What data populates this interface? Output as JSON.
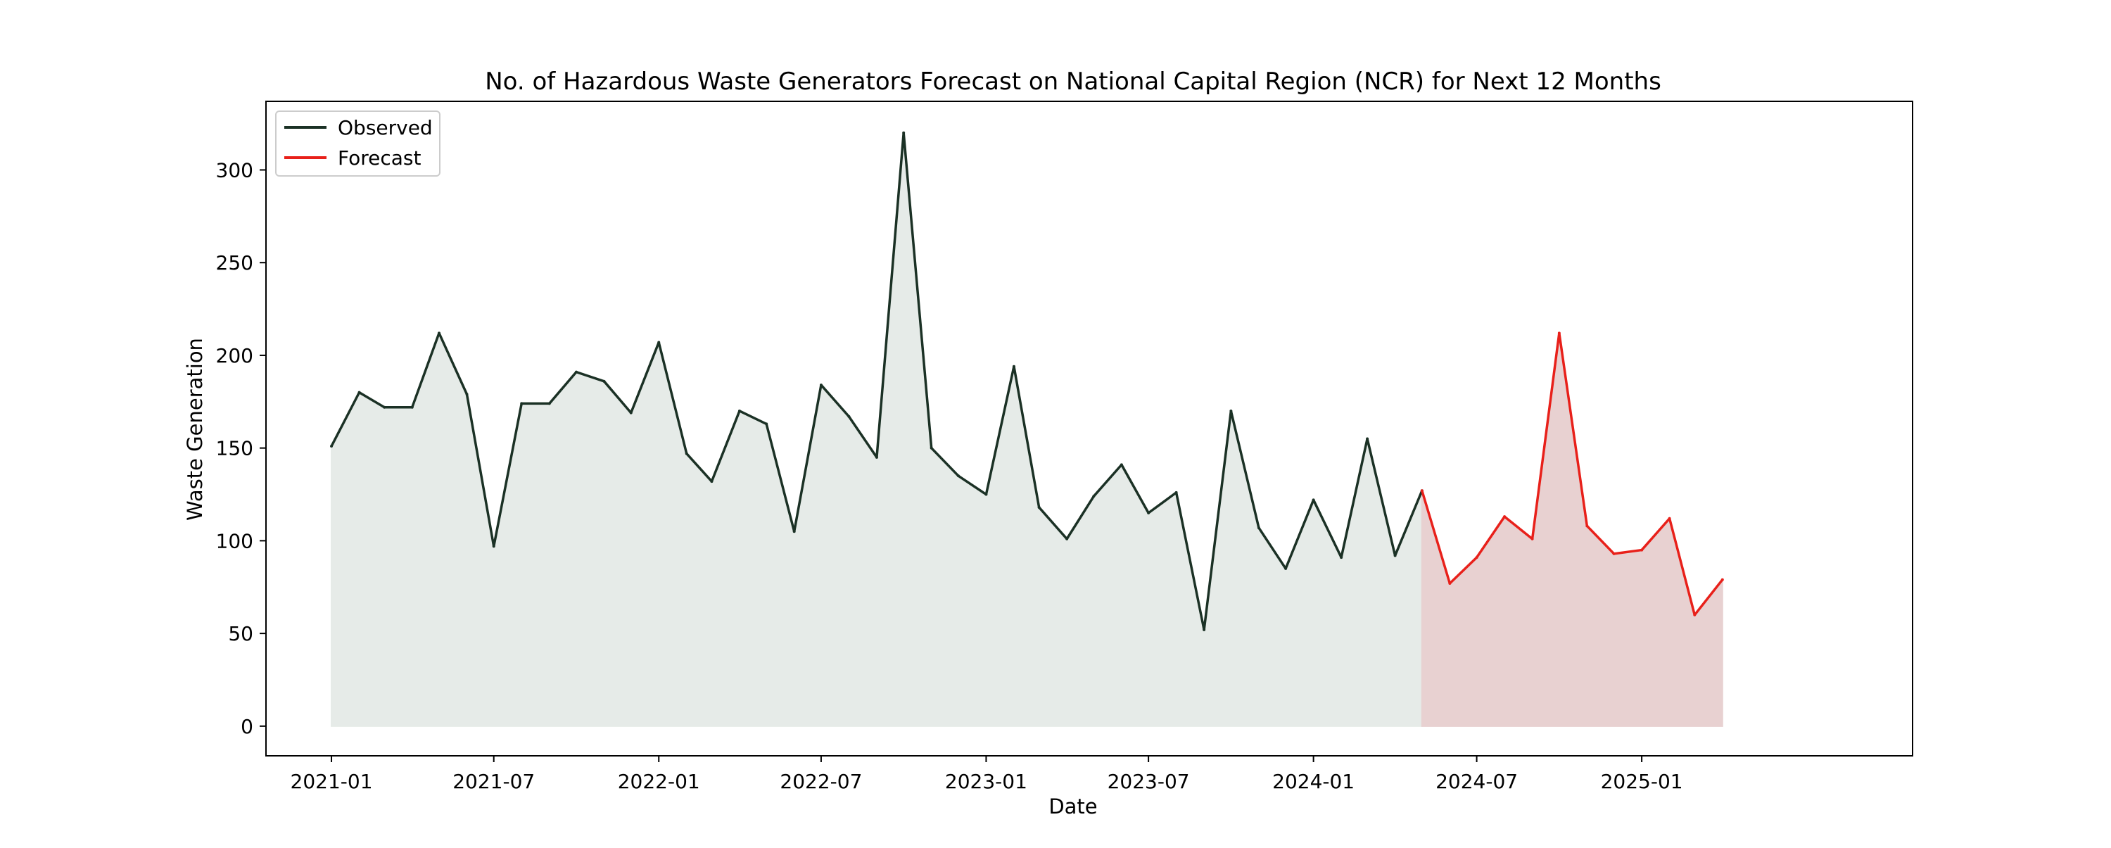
{
  "chart_data": {
    "type": "area",
    "title": "No. of Hazardous Waste Generators Forecast on National Capital Region (NCR) for Next 12 Months",
    "xlabel": "Date",
    "ylabel": "Waste Generation",
    "xlim": [
      "2020-10-20",
      "2025-10-30"
    ],
    "ylim": [
      -16,
      337
    ],
    "x_ticks": [
      "2021-01",
      "2021-07",
      "2022-01",
      "2022-07",
      "2023-01",
      "2023-07",
      "2024-01",
      "2024-07",
      "2025-01"
    ],
    "y_ticks": [
      0,
      50,
      100,
      150,
      200,
      250,
      300
    ],
    "grid": false,
    "legend_position": "upper-left",
    "series": [
      {
        "name": "Observed",
        "color": "#1b3125",
        "fill_color": "#e6ebe8",
        "x": [
          "2021-01-01",
          "2021-02-01",
          "2021-03-01",
          "2021-04-01",
          "2021-05-01",
          "2021-06-01",
          "2021-07-01",
          "2021-08-01",
          "2021-09-01",
          "2021-10-01",
          "2021-11-01",
          "2021-12-01",
          "2022-01-01",
          "2022-02-01",
          "2022-03-01",
          "2022-04-01",
          "2022-05-01",
          "2022-06-01",
          "2022-07-01",
          "2022-08-01",
          "2022-09-01",
          "2022-10-01",
          "2022-11-01",
          "2022-12-01",
          "2023-01-01",
          "2023-02-01",
          "2023-03-01",
          "2023-04-01",
          "2023-05-01",
          "2023-06-01",
          "2023-07-01",
          "2023-08-01",
          "2023-09-01",
          "2023-10-01",
          "2023-11-01",
          "2023-12-01",
          "2024-01-01",
          "2024-02-01",
          "2024-03-01",
          "2024-04-01",
          "2024-05-01"
        ],
        "values": [
          151,
          180,
          172,
          172,
          212,
          179,
          97,
          174,
          174,
          191,
          186,
          169,
          207,
          147,
          132,
          170,
          163,
          105,
          184,
          167,
          145,
          320,
          150,
          135,
          125,
          194,
          118,
          101,
          124,
          141,
          115,
          126,
          52,
          170,
          107,
          85,
          122,
          91,
          155,
          92,
          127
        ]
      },
      {
        "name": "Forecast",
        "color": "#e8201a",
        "fill_color": "#e8d1d1",
        "x": [
          "2024-05-01",
          "2024-06-01",
          "2024-07-01",
          "2024-08-01",
          "2024-09-01",
          "2024-10-01",
          "2024-11-01",
          "2024-12-01",
          "2025-01-01",
          "2025-02-01",
          "2025-03-01",
          "2025-04-01"
        ],
        "values": [
          127,
          77,
          91,
          113,
          101,
          212,
          108,
          93,
          95,
          112,
          60,
          79
        ]
      }
    ]
  }
}
